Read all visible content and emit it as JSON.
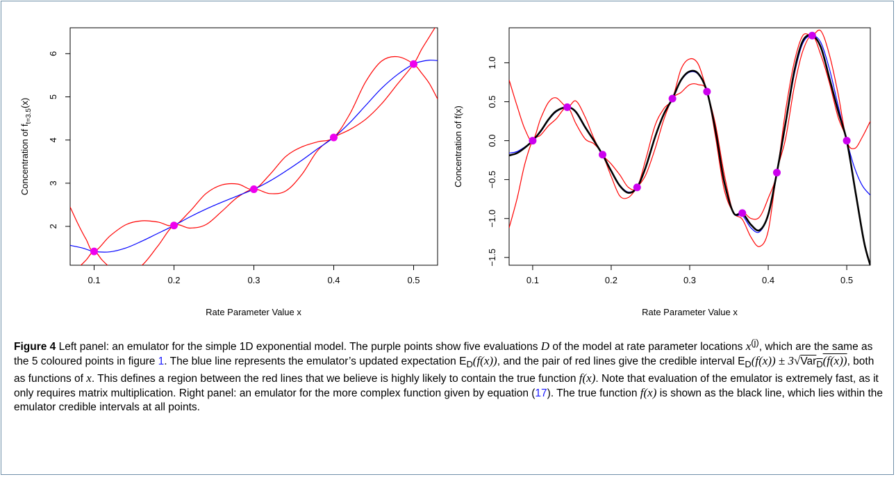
{
  "chart_data": [
    {
      "type": "line",
      "panel": "left",
      "xlabel": "Rate Parameter Value x",
      "ylabel": "Concentration of f",
      "ylabel_sub": "t=3.5",
      "ylabel_suffix": "(x)",
      "xlim": [
        0.07,
        0.53
      ],
      "ylim": [
        1.1,
        6.6
      ],
      "xticks": [
        "0.1",
        "0.2",
        "0.3",
        "0.4",
        "0.5"
      ],
      "yticks": [
        "2",
        "3",
        "4",
        "5",
        "6"
      ],
      "points": {
        "color": "#ee00ee",
        "x": [
          0.1,
          0.2,
          0.3,
          0.4,
          0.5
        ],
        "y": [
          1.42,
          2.02,
          2.86,
          4.06,
          5.76
        ]
      },
      "series": [
        {
          "role": "expectation",
          "color": "#0000ff",
          "x": [
            0.07,
            0.085,
            0.1,
            0.12,
            0.14,
            0.16,
            0.18,
            0.2,
            0.22,
            0.24,
            0.26,
            0.28,
            0.3,
            0.32,
            0.34,
            0.36,
            0.38,
            0.4,
            0.42,
            0.44,
            0.46,
            0.48,
            0.5,
            0.51,
            0.52,
            0.53
          ],
          "y": [
            1.56,
            1.5,
            1.42,
            1.41,
            1.5,
            1.66,
            1.84,
            2.02,
            2.22,
            2.4,
            2.56,
            2.71,
            2.86,
            3.05,
            3.28,
            3.53,
            3.8,
            4.06,
            4.4,
            4.8,
            5.2,
            5.52,
            5.76,
            5.82,
            5.85,
            5.84
          ]
        },
        {
          "role": "upper",
          "color": "#ff0000",
          "x": [
            0.07,
            0.08,
            0.09,
            0.1,
            0.12,
            0.14,
            0.16,
            0.18,
            0.2,
            0.22,
            0.24,
            0.26,
            0.28,
            0.3,
            0.32,
            0.34,
            0.36,
            0.38,
            0.4,
            0.42,
            0.44,
            0.46,
            0.48,
            0.5,
            0.51,
            0.52,
            0.53
          ],
          "y": [
            2.45,
            2.05,
            1.7,
            1.42,
            1.78,
            2.04,
            2.13,
            2.1,
            2.02,
            2.35,
            2.76,
            2.96,
            2.98,
            2.86,
            3.2,
            3.62,
            3.84,
            3.96,
            4.06,
            4.6,
            5.35,
            5.83,
            5.93,
            5.76,
            5.55,
            5.3,
            4.95
          ]
        },
        {
          "role": "lower",
          "color": "#ff0000",
          "x": [
            0.07,
            0.08,
            0.09,
            0.1,
            0.11,
            0.12,
            0.13,
            0.14,
            0.16,
            0.18,
            0.2,
            0.22,
            0.24,
            0.26,
            0.28,
            0.3,
            0.32,
            0.34,
            0.36,
            0.38,
            0.4,
            0.42,
            0.44,
            0.46,
            0.48,
            0.5,
            0.51,
            0.52,
            0.53
          ],
          "y": [
            1.0,
            1.05,
            1.22,
            1.42,
            1.22,
            1.05,
            0.95,
            0.92,
            1.1,
            1.55,
            2.02,
            1.96,
            2.04,
            2.35,
            2.68,
            2.86,
            2.76,
            2.82,
            3.2,
            3.76,
            4.06,
            4.24,
            4.48,
            4.84,
            5.3,
            5.76,
            6.1,
            6.4,
            6.7
          ]
        }
      ]
    },
    {
      "type": "line",
      "panel": "right",
      "xlabel": "Rate Parameter Value x",
      "ylabel": "Concentration of f(x)",
      "xlim": [
        0.07,
        0.53
      ],
      "ylim": [
        -1.6,
        1.45
      ],
      "xticks": [
        "0.1",
        "0.2",
        "0.3",
        "0.4",
        "0.5"
      ],
      "yticks": [
        "−1.5",
        "−1.0",
        "−0.5",
        "0.0",
        "0.5",
        "1.0"
      ],
      "points": {
        "color": "#cc00ee",
        "x": [
          0.1,
          0.144,
          0.189,
          0.233,
          0.278,
          0.322,
          0.367,
          0.411,
          0.456,
          0.5
        ],
        "y": [
          0.0,
          0.43,
          -0.18,
          -0.6,
          0.54,
          0.63,
          -0.93,
          -0.41,
          1.35,
          0.0
        ]
      },
      "series": [
        {
          "role": "true-function",
          "color": "#000000",
          "x": [
            0.07,
            0.08,
            0.09,
            0.1,
            0.11,
            0.12,
            0.13,
            0.144,
            0.155,
            0.167,
            0.178,
            0.189,
            0.2,
            0.211,
            0.222,
            0.233,
            0.244,
            0.256,
            0.267,
            0.278,
            0.289,
            0.3,
            0.311,
            0.322,
            0.333,
            0.344,
            0.356,
            0.367,
            0.378,
            0.389,
            0.4,
            0.411,
            0.422,
            0.433,
            0.444,
            0.456,
            0.467,
            0.478,
            0.489,
            0.5,
            0.511,
            0.522,
            0.53
          ],
          "y": [
            -0.19,
            -0.16,
            -0.09,
            0.0,
            0.12,
            0.27,
            0.38,
            0.43,
            0.37,
            0.17,
            0.0,
            -0.18,
            -0.39,
            -0.58,
            -0.67,
            -0.6,
            -0.34,
            0.05,
            0.34,
            0.54,
            0.78,
            0.89,
            0.86,
            0.63,
            0.12,
            -0.53,
            -0.93,
            -0.93,
            -1.08,
            -1.15,
            -0.95,
            -0.41,
            0.22,
            0.88,
            1.28,
            1.35,
            1.2,
            0.8,
            0.38,
            0.0,
            -0.65,
            -1.3,
            -1.6
          ]
        },
        {
          "role": "expectation",
          "color": "#0000ff",
          "x": [
            0.07,
            0.08,
            0.09,
            0.1,
            0.11,
            0.12,
            0.13,
            0.144,
            0.155,
            0.167,
            0.178,
            0.189,
            0.2,
            0.211,
            0.222,
            0.233,
            0.244,
            0.256,
            0.267,
            0.278,
            0.289,
            0.3,
            0.311,
            0.322,
            0.333,
            0.344,
            0.356,
            0.367,
            0.378,
            0.389,
            0.4,
            0.411,
            0.422,
            0.433,
            0.444,
            0.456,
            0.467,
            0.478,
            0.489,
            0.5,
            0.51,
            0.52,
            0.53
          ],
          "y": [
            -0.16,
            -0.14,
            -0.08,
            0.0,
            0.11,
            0.26,
            0.37,
            0.43,
            0.36,
            0.16,
            0.0,
            -0.18,
            -0.38,
            -0.57,
            -0.66,
            -0.6,
            -0.34,
            0.05,
            0.34,
            0.54,
            0.77,
            0.88,
            0.85,
            0.63,
            0.12,
            -0.53,
            -0.93,
            -0.96,
            -1.12,
            -1.17,
            -0.95,
            -0.41,
            0.2,
            0.84,
            1.25,
            1.35,
            1.26,
            0.92,
            0.45,
            0.0,
            -0.35,
            -0.58,
            -0.7
          ]
        },
        {
          "role": "upper",
          "color": "#ff0000",
          "x": [
            0.07,
            0.08,
            0.09,
            0.1,
            0.11,
            0.12,
            0.13,
            0.144,
            0.155,
            0.167,
            0.178,
            0.189,
            0.2,
            0.211,
            0.222,
            0.233,
            0.244,
            0.256,
            0.267,
            0.278,
            0.289,
            0.3,
            0.311,
            0.322,
            0.333,
            0.344,
            0.356,
            0.367,
            0.378,
            0.389,
            0.4,
            0.411,
            0.422,
            0.433,
            0.444,
            0.456,
            0.467,
            0.478,
            0.489,
            0.5,
            0.51,
            0.52,
            0.53
          ],
          "y": [
            0.78,
            0.45,
            0.15,
            0.0,
            0.28,
            0.49,
            0.55,
            0.43,
            0.51,
            0.3,
            0.03,
            -0.18,
            -0.3,
            -0.44,
            -0.6,
            -0.6,
            -0.24,
            0.2,
            0.41,
            0.54,
            0.92,
            1.05,
            0.98,
            0.63,
            0.2,
            -0.43,
            -0.93,
            -0.91,
            -1.0,
            -0.98,
            -0.74,
            -0.41,
            0.38,
            1.0,
            1.35,
            1.35,
            1.41,
            1.1,
            0.6,
            0.0,
            -0.1,
            0.05,
            0.25
          ]
        },
        {
          "role": "lower",
          "color": "#ff0000",
          "x": [
            0.07,
            0.08,
            0.09,
            0.1,
            0.11,
            0.12,
            0.13,
            0.144,
            0.155,
            0.167,
            0.178,
            0.189,
            0.2,
            0.211,
            0.222,
            0.233,
            0.244,
            0.256,
            0.267,
            0.278,
            0.289,
            0.3,
            0.311,
            0.322,
            0.333,
            0.344,
            0.356,
            0.367,
            0.378,
            0.389,
            0.4,
            0.411,
            0.422,
            0.433,
            0.444,
            0.456,
            0.467,
            0.478,
            0.489,
            0.5,
            0.51,
            0.52,
            0.53
          ],
          "y": [
            -1.12,
            -0.75,
            -0.3,
            0.0,
            0.07,
            0.19,
            0.28,
            0.43,
            0.22,
            0.02,
            -0.04,
            -0.18,
            -0.46,
            -0.71,
            -0.73,
            -0.6,
            -0.44,
            -0.1,
            0.27,
            0.54,
            0.62,
            0.72,
            0.72,
            0.63,
            0.04,
            -0.63,
            -0.93,
            -1.01,
            -1.24,
            -1.36,
            -1.16,
            -0.41,
            0.02,
            0.68,
            1.15,
            1.35,
            1.1,
            0.74,
            0.3,
            0.0,
            -0.6,
            -1.2,
            -1.6
          ]
        }
      ]
    }
  ],
  "caption": {
    "label": "Figure 4",
    "p1": "Left panel: an emulator for the simple 1D exponential model. The purple points show five evaluations",
    "var_D": "D",
    "p2": "of the model at rate parameter locations",
    "var_xj": "x",
    "sup_j": "(j)",
    "p3": ", which are the same as the 5 coloured points in figure",
    "ref_fig": "1",
    "p4": ". The blue line represents the emulator’s updated expectation",
    "expr_E": "E",
    "expr_E_sub": "D",
    "expr_E_arg": "(f(x))",
    "p5": ", and the pair of red lines give the credible interval",
    "expr_ci": "E",
    "expr_ci_sub": "D",
    "expr_ci_arg": "(f(x)) ± 3√",
    "expr_var": "Var",
    "expr_var_sub": "D",
    "expr_var_arg": "(f(x))",
    "p6": ", both as functions of",
    "var_x": "x",
    "p7": ". This defines a region between the red lines that we believe is highly likely to contain the true function",
    "expr_fx": "f(x)",
    "p8": ". Note that evaluation of the emulator is extremely fast, as it only requires matrix multiplication. Right panel: an emulator for the more complex function given by equation (",
    "ref_eq": "17",
    "p9": "). The true function",
    "expr_fx2": "f(x)",
    "p10": "is shown as the black line, which lies within the emulator credible intervals at all points."
  }
}
